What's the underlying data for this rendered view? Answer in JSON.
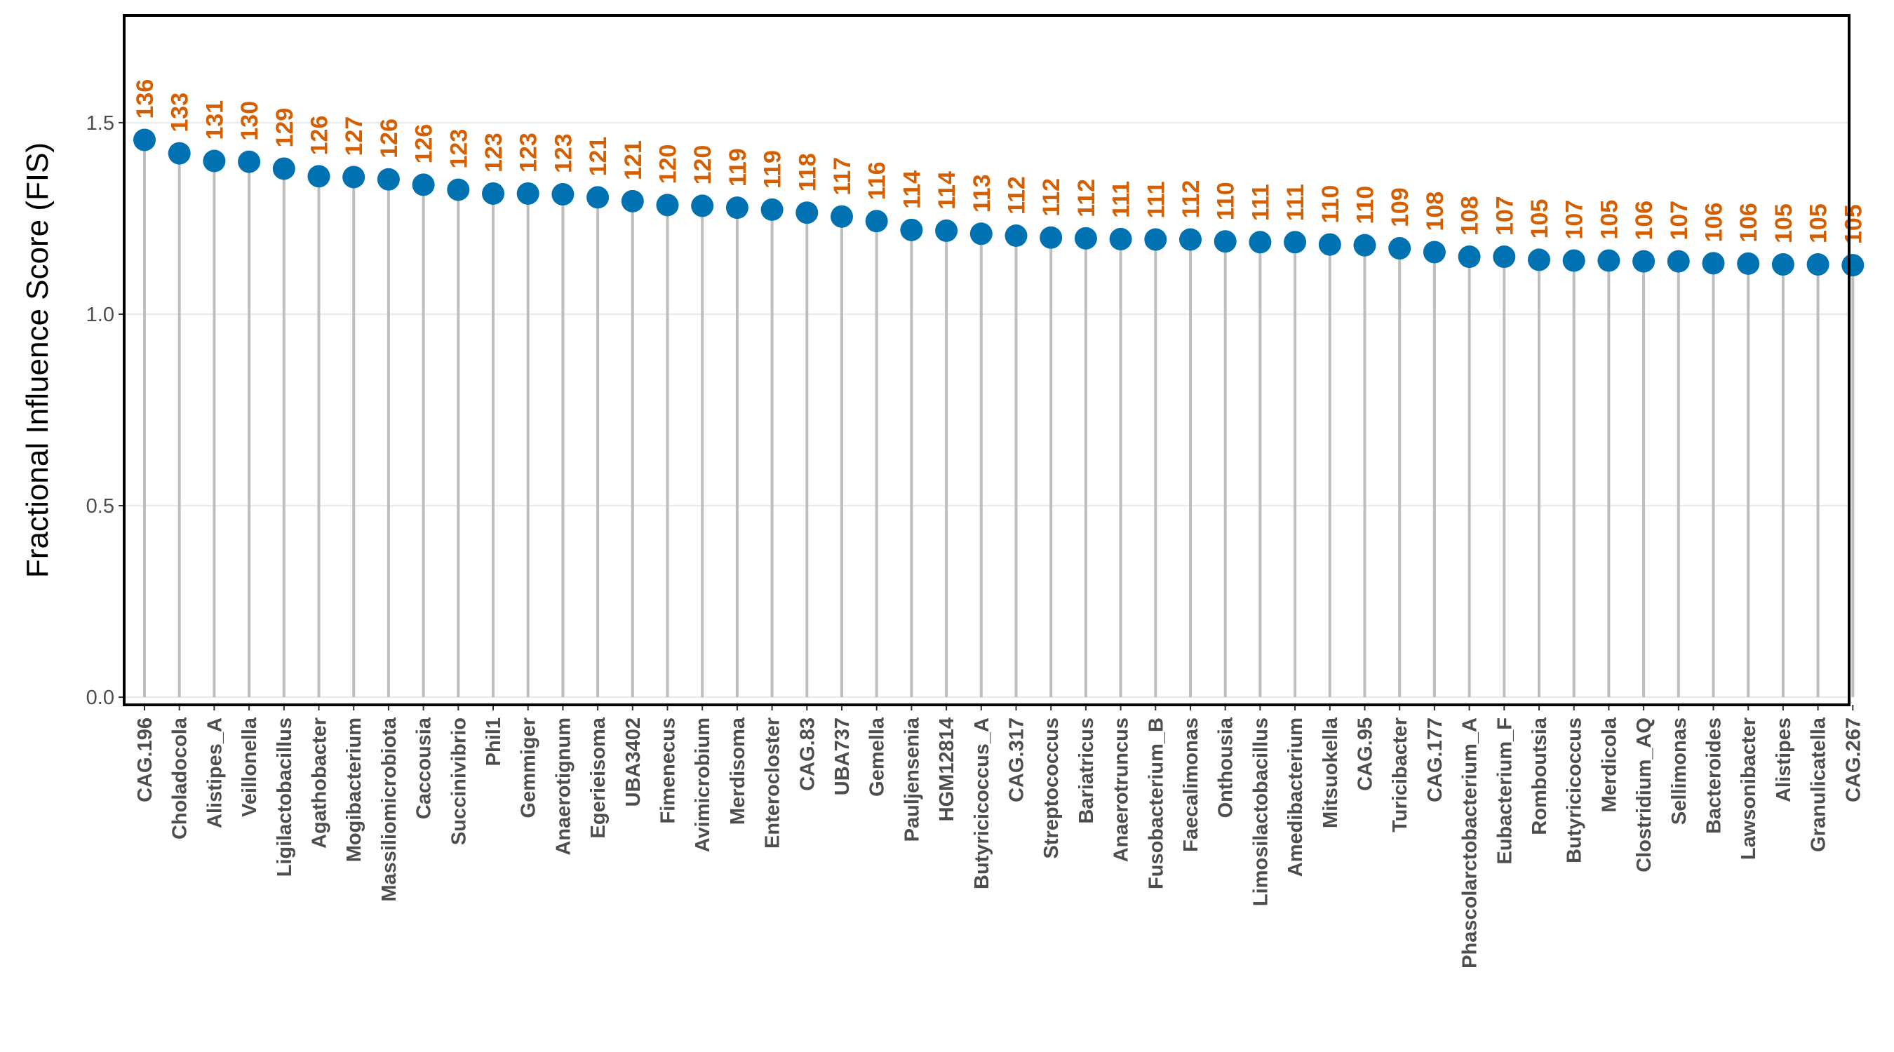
{
  "chart_data": {
    "type": "lollipop",
    "ylabel": "Fractional Influence Score (FIS)",
    "xlabel": "",
    "ylim": [
      -0.02,
      1.78
    ],
    "yticks": [
      0.0,
      0.5,
      1.0,
      1.5
    ],
    "ytick_labels": [
      "0.0",
      "0.5",
      "1.0",
      "1.5"
    ],
    "grid": "horizontal",
    "categories": [
      "CAG.196",
      "Choladocola",
      "Alistipes_A",
      "Veillonella",
      "Ligilactobacillus",
      "Agathobacter",
      "Mogibacterium",
      "Massiliomicrobiota",
      "Caccousia",
      "Succinivibrio",
      "Phil1",
      "Gemmiger",
      "Anaerotignum",
      "Egerieisoma",
      "UBA3402",
      "Fimenecus",
      "Avimicrobium",
      "Merdisoma",
      "Enterocloster",
      "CAG.83",
      "UBA737",
      "Gemella",
      "Pauljensenia",
      "HGM12814",
      "Butyricicoccus_A",
      "CAG.317",
      "Streptococcus",
      "Bariatricus",
      "Anaerotruncus",
      "Fusobacterium_B",
      "Faecalimonas",
      "Onthousia",
      "Limosilactobacillus",
      "Amedibacterium",
      "Mitsuokella",
      "CAG.95",
      "Turicibacter",
      "CAG.177",
      "Phascolarctobacterium_A",
      "Eubacterium_F",
      "Romboutsia",
      "Butyricicoccus",
      "Merdicola",
      "Clostridium_AQ",
      "Sellimonas",
      "Bacteroides",
      "Lawsonibacter",
      "Alistipes",
      "Granulicatella",
      "CAG.267"
    ],
    "values": [
      1.455,
      1.42,
      1.4,
      1.398,
      1.38,
      1.36,
      1.358,
      1.352,
      1.338,
      1.325,
      1.315,
      1.315,
      1.313,
      1.305,
      1.295,
      1.285,
      1.283,
      1.278,
      1.273,
      1.265,
      1.255,
      1.243,
      1.22,
      1.218,
      1.21,
      1.205,
      1.2,
      1.198,
      1.196,
      1.195,
      1.195,
      1.19,
      1.188,
      1.188,
      1.182,
      1.18,
      1.172,
      1.162,
      1.15,
      1.15,
      1.142,
      1.14,
      1.14,
      1.138,
      1.138,
      1.133,
      1.132,
      1.13,
      1.13,
      1.128
    ],
    "labels": [
      "136",
      "133",
      "131",
      "130",
      "129",
      "126",
      "127",
      "126",
      "126",
      "123",
      "123",
      "123",
      "123",
      "121",
      "121",
      "120",
      "120",
      "119",
      "119",
      "118",
      "117",
      "116",
      "114",
      "114",
      "113",
      "112",
      "112",
      "112",
      "111",
      "111",
      "112",
      "110",
      "111",
      "111",
      "110",
      "110",
      "109",
      "108",
      "108",
      "107",
      "105",
      "107",
      "105",
      "106",
      "107",
      "106",
      "106",
      "105",
      "105",
      "105"
    ],
    "colors": {
      "point": "#0072b2",
      "stem": "#bebebe",
      "label": "#d55e00",
      "grid": "#ebebeb",
      "border": "#000000"
    }
  }
}
